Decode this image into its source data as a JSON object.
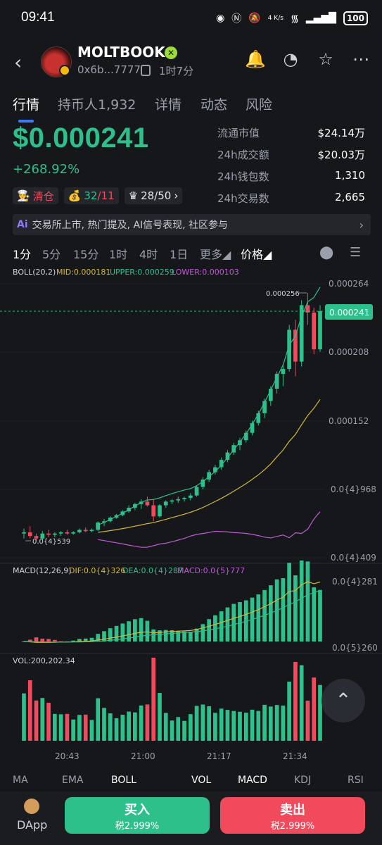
{
  "status_bar": {
    "time": "09:41",
    "net_speed": "4 K/s",
    "battery": "100"
  },
  "header": {
    "name": "MOLTBOOK",
    "address": "0x6b...7777",
    "age": "1时7分"
  },
  "tabs": [
    {
      "label": "行情",
      "active": true
    },
    {
      "label": "持币人1,932",
      "active": false
    },
    {
      "label": "详情",
      "active": false
    },
    {
      "label": "动态",
      "active": false
    },
    {
      "label": "风险",
      "active": false
    }
  ],
  "price": "$0.000241",
  "change": "+268.92%",
  "stats": [
    {
      "k": "流通市值",
      "v": "$24.14万"
    },
    {
      "k": "24h成交额",
      "v": "$20.03万"
    },
    {
      "k": "24h钱包数",
      "v": "1,310"
    },
    {
      "k": "24h交易数",
      "v": "2,665"
    }
  ],
  "badges": {
    "clear": "清仓",
    "holders_green": "32",
    "holders_red": "/11",
    "crown": "28/50"
  },
  "ai_bar": {
    "label": "交易所上市, 热门提及, AI信号表现, 社区参与"
  },
  "timeframes": [
    "1分",
    "5分",
    "15分",
    "1时",
    "4时",
    "1日",
    "更多",
    "价格"
  ],
  "boll": {
    "label": "BOLL(20,2)",
    "mid": "MID:0.000181",
    "upper": "UPPER:0.000259",
    "lower": "LOWER:0.000103"
  },
  "macd": {
    "label": "MACD(12,26,9)",
    "dif": "DIF:0.0{4}326",
    "dea": "DEA:0.0{4}287",
    "macd": "MACD:0.0{5}777"
  },
  "vol": {
    "label": "VOL:200,202.34"
  },
  "axis": {
    "price_ticks": [
      "0.000264",
      "0.000208",
      "0.000152",
      "0.0{4}968",
      "0.0{4}409"
    ],
    "current_price": "0.000241",
    "high_label": "0.000256",
    "low_label": "0.0{4}539",
    "macd_ticks": [
      "0.0{4}281",
      "0.0{5}260"
    ],
    "time_ticks": [
      "20:43",
      "21:00",
      "21:17",
      "21:34"
    ]
  },
  "bottom_tabs": [
    "MA",
    "EMA",
    "BOLL",
    "VOL",
    "MACD",
    "KDJ",
    "RSI"
  ],
  "footer": {
    "dapp": "DApp",
    "buy": "买入",
    "buy_tax": "税2.999%",
    "sell": "卖出",
    "sell_tax": "税2.999%"
  },
  "colors": {
    "up": "#2ec08b",
    "down": "#f04a5c",
    "mid": "#d4b83a",
    "upper": "#2ec08b",
    "lower": "#c05bd8"
  },
  "chart_data": {
    "type": "candlestick",
    "interval": "1分",
    "price_axis": {
      "ticks": [
        0.000264,
        0.000208,
        0.000152,
        9.68e-05,
        4.09e-05
      ]
    },
    "candles": [
      [
        6e-05,
        6.4e-05,
        5.6e-05,
        6.1e-05
      ],
      [
        6.1e-05,
        6.6e-05,
        5.6e-05,
        5.8e-05
      ],
      [
        5.8e-05,
        6e-05,
        5.39e-05,
        5.6e-05
      ],
      [
        5.6e-05,
        6.2e-05,
        5.5e-05,
        6e-05
      ],
      [
        6e-05,
        6.3e-05,
        5.7e-05,
        5.9e-05
      ],
      [
        5.9e-05,
        6.1e-05,
        5.7e-05,
        6e-05
      ],
      [
        6e-05,
        6.2e-05,
        5.8e-05,
        6.1e-05
      ],
      [
        6.1e-05,
        6.3e-05,
        5.9e-05,
        6e-05
      ],
      [
        6e-05,
        6.2e-05,
        5.9e-05,
        6.1e-05
      ],
      [
        6.1e-05,
        6.4e-05,
        6e-05,
        6.3e-05
      ],
      [
        6.3e-05,
        6.5e-05,
        6.1e-05,
        6.2e-05
      ],
      [
        6.2e-05,
        6.4e-05,
        6.1e-05,
        6.3e-05
      ],
      [
        6.3e-05,
        7e-05,
        6.2e-05,
        6.9e-05
      ],
      [
        6.9e-05,
        7.2e-05,
        6.6e-05,
        7e-05
      ],
      [
        7e-05,
        7.4e-05,
        6.9e-05,
        7.3e-05
      ],
      [
        7.3e-05,
        7.6e-05,
        7.2e-05,
        7.5e-05
      ],
      [
        7.5e-05,
        7.9e-05,
        7.4e-05,
        7.8e-05
      ],
      [
        7.8e-05,
        8.3e-05,
        7.7e-05,
        8.1e-05
      ],
      [
        8.1e-05,
        8.5e-05,
        7.9e-05,
        8.4e-05
      ],
      [
        8.4e-05,
        8.8e-05,
        8e-05,
        8.6e-05
      ],
      [
        8.6e-05,
        9e-05,
        8.2e-05,
        8.3e-05
      ],
      [
        8.3e-05,
        8.8e-05,
        7e-05,
        7.4e-05
      ],
      [
        7.4e-05,
        8.4e-05,
        7.3e-05,
        8.3e-05
      ],
      [
        8.3e-05,
        8.7e-05,
        8.1e-05,
        8.6e-05
      ],
      [
        8.6e-05,
        8.8e-05,
        8.4e-05,
        8.7e-05
      ],
      [
        8.7e-05,
        9e-05,
        8.5e-05,
        8.8e-05
      ],
      [
        8.8e-05,
        9e-05,
        8.6e-05,
        8.9e-05
      ],
      [
        8.9e-05,
        9.3e-05,
        8.7e-05,
        9.1e-05
      ],
      [
        9.1e-05,
        9.9e-05,
        9e-05,
        9.8e-05
      ],
      [
        9.8e-05,
        0.000106,
        9.6e-05,
        0.000104
      ],
      [
        0.000104,
        0.000112,
        0.000102,
        0.00011
      ],
      [
        0.00011,
        0.000116,
        0.000108,
        0.000114
      ],
      [
        0.000114,
        0.000122,
        0.000112,
        0.00012
      ],
      [
        0.00012,
        0.000128,
        0.000118,
        0.000126
      ],
      [
        0.000126,
        0.000134,
        0.000124,
        0.000132
      ],
      [
        0.000132,
        0.000138,
        0.000128,
        0.000136
      ],
      [
        0.000136,
        0.000144,
        0.000134,
        0.000142
      ],
      [
        0.000142,
        0.000152,
        0.00014,
        0.00015
      ],
      [
        0.00015,
        0.00016,
        0.000148,
        0.000158
      ],
      [
        0.000158,
        0.00017,
        0.000154,
        0.000168
      ],
      [
        0.000168,
        0.00018,
        0.000164,
        0.000178
      ],
      [
        0.000178,
        0.000192,
        0.000174,
        0.00019
      ],
      [
        0.00019,
        0.000198,
        0.00018,
        0.000194
      ],
      [
        0.000194,
        0.00023,
        0.000192,
        0.000226
      ],
      [
        0.000226,
        0.000234,
        0.000188,
        0.0002
      ],
      [
        0.0002,
        0.00025,
        0.000196,
        0.000246
      ],
      [
        0.000246,
        0.000256,
        0.00023,
        0.00024
      ],
      [
        0.00024,
        0.000244,
        0.000206,
        0.00021
      ],
      [
        0.00021,
        0.000246,
        0.000208,
        0.000241
      ]
    ]
  }
}
